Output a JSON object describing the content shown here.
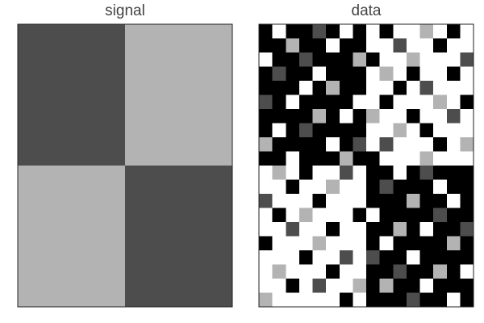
{
  "chart_data": [
    {
      "type": "heatmap",
      "title": "signal",
      "colormap": "gray",
      "clim": [
        0,
        10
      ],
      "z": [
        [
          3,
          7
        ],
        [
          7,
          3
        ]
      ]
    },
    {
      "type": "heatmap",
      "title": "data",
      "colormap": "gray",
      "clim": [
        0,
        10
      ],
      "z": [
        [
          0,
          10,
          0,
          0,
          3,
          0,
          10,
          0,
          10,
          0,
          10,
          10,
          7,
          10,
          0,
          10
        ],
        [
          0,
          0,
          7,
          0,
          0,
          10,
          0,
          0,
          10,
          10,
          3,
          10,
          10,
          0,
          10,
          10
        ],
        [
          10,
          0,
          0,
          3,
          0,
          0,
          0,
          7,
          0,
          10,
          10,
          7,
          10,
          10,
          10,
          3
        ],
        [
          0,
          3,
          0,
          0,
          10,
          0,
          0,
          0,
          10,
          7,
          10,
          0,
          10,
          10,
          0,
          10
        ],
        [
          0,
          0,
          0,
          10,
          0,
          7,
          0,
          0,
          10,
          10,
          0,
          10,
          3,
          10,
          10,
          10
        ],
        [
          3,
          0,
          10,
          0,
          0,
          0,
          0,
          10,
          10,
          0,
          10,
          10,
          10,
          7,
          10,
          0
        ],
        [
          0,
          0,
          0,
          0,
          7,
          0,
          10,
          0,
          7,
          10,
          10,
          0,
          10,
          10,
          3,
          10
        ],
        [
          0,
          10,
          0,
          3,
          0,
          0,
          0,
          0,
          10,
          10,
          7,
          10,
          0,
          10,
          10,
          10
        ],
        [
          7,
          0,
          0,
          0,
          0,
          10,
          0,
          3,
          10,
          3,
          10,
          10,
          10,
          0,
          10,
          7
        ],
        [
          0,
          0,
          10,
          0,
          0,
          0,
          7,
          0,
          0,
          10,
          10,
          10,
          7,
          10,
          10,
          10
        ],
        [
          10,
          7,
          10,
          0,
          10,
          10,
          3,
          10,
          0,
          0,
          10,
          0,
          3,
          0,
          0,
          0
        ],
        [
          10,
          10,
          0,
          10,
          10,
          7,
          10,
          10,
          0,
          3,
          0,
          0,
          0,
          10,
          0,
          0
        ],
        [
          3,
          10,
          10,
          10,
          0,
          10,
          10,
          10,
          0,
          0,
          0,
          7,
          0,
          0,
          10,
          0
        ],
        [
          10,
          0,
          10,
          7,
          10,
          10,
          10,
          0,
          10,
          0,
          0,
          0,
          0,
          3,
          0,
          0
        ],
        [
          10,
          10,
          3,
          10,
          10,
          0,
          10,
          10,
          0,
          0,
          7,
          0,
          10,
          0,
          0,
          3
        ],
        [
          0,
          10,
          10,
          10,
          7,
          10,
          10,
          10,
          0,
          10,
          0,
          0,
          0,
          0,
          7,
          0
        ],
        [
          10,
          10,
          10,
          0,
          10,
          10,
          3,
          10,
          3,
          0,
          0,
          10,
          0,
          0,
          0,
          0
        ],
        [
          10,
          7,
          10,
          10,
          10,
          0,
          10,
          10,
          0,
          0,
          3,
          0,
          0,
          7,
          0,
          10
        ],
        [
          10,
          10,
          0,
          10,
          3,
          10,
          10,
          7,
          0,
          7,
          0,
          0,
          10,
          0,
          0,
          0
        ],
        [
          7,
          10,
          10,
          10,
          10,
          10,
          0,
          10,
          0,
          0,
          0,
          3,
          0,
          0,
          10,
          0
        ]
      ]
    }
  ]
}
